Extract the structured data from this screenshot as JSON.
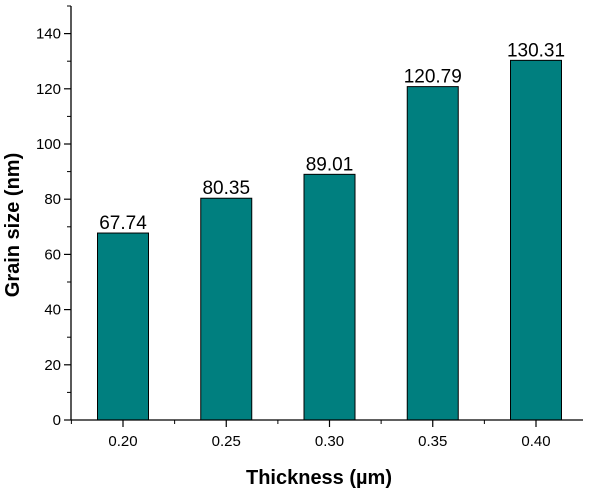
{
  "chart_data": {
    "type": "bar",
    "categories": [
      "0.20",
      "0.25",
      "0.30",
      "0.35",
      "0.40"
    ],
    "values": [
      67.74,
      80.35,
      89.01,
      120.79,
      130.31
    ],
    "data_labels": [
      "67.74",
      "80.35",
      "89.01",
      "120.79",
      "130.31"
    ],
    "xlabel": "Thickness (µm)",
    "ylabel": "Grain size (nm)",
    "ylim": [
      0,
      150
    ],
    "yticks": [
      0,
      20,
      40,
      60,
      80,
      100,
      120,
      140
    ],
    "ytick_labels": [
      "0",
      "20",
      "40",
      "60",
      "80",
      "100",
      "120",
      "140"
    ],
    "grid": false,
    "bar_color": "#007f7f",
    "bar_edge_color": "#000000"
  }
}
